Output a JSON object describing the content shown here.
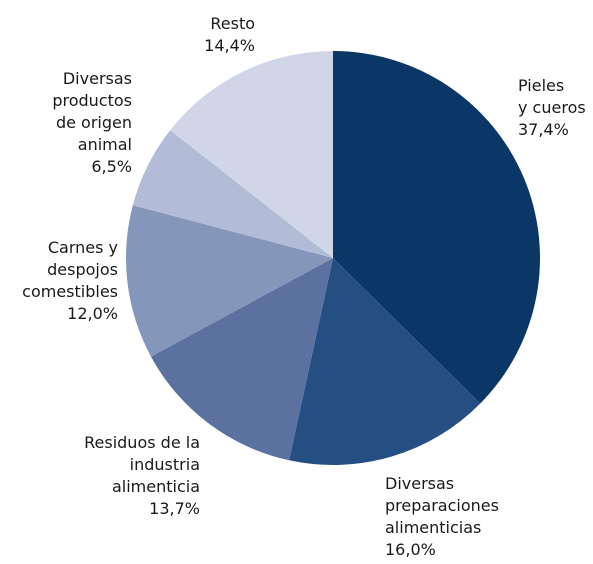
{
  "chart_data": {
    "type": "pie",
    "categories": [
      "Pieles\ny cueros",
      "Diversas\npreparaciones\nalimenticias",
      "Residuos de la\nindustria\nalimenticia",
      "Carnes y\ndespojos\ncomestibles",
      "Diversas\nproductos\nde origen\nanimal",
      "Resto"
    ],
    "values": [
      37.4,
      16.0,
      13.7,
      12.0,
      6.5,
      14.4
    ],
    "value_labels": [
      "37,4%",
      "16,0%",
      "13,7%",
      "12,0%",
      "6,5%",
      "14,4%"
    ],
    "colors": [
      "#0a3766",
      "#254f83",
      "#5b72a1",
      "#8596bb",
      "#b3bcd6",
      "#d0d6e7"
    ]
  }
}
